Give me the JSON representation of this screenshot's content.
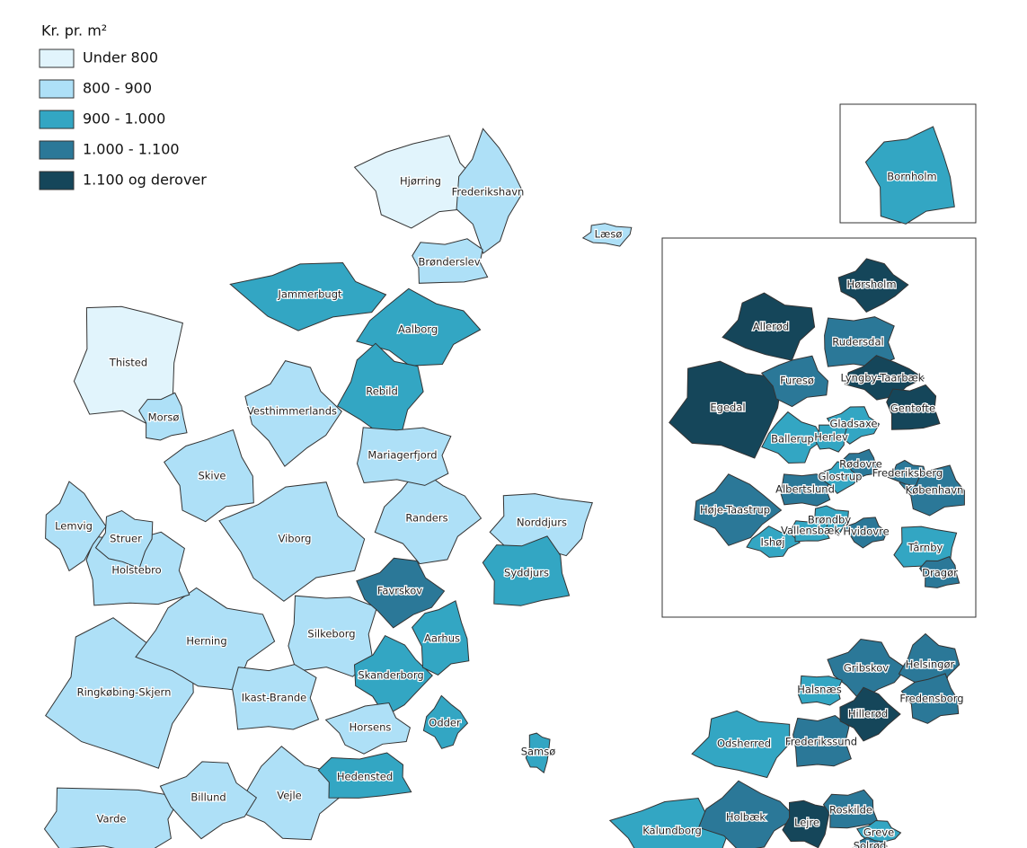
{
  "legend": {
    "title": "Kr. pr. m²",
    "items": [
      {
        "label": "Under 800",
        "color": "#e1f4fc"
      },
      {
        "label": "800 - 900",
        "color": "#aee0f7"
      },
      {
        "label": "900 - 1.000",
        "color": "#33a6c3"
      },
      {
        "label": "1.000 - 1.100",
        "color": "#2b7898"
      },
      {
        "label": "1.100 og derover",
        "color": "#15465a"
      }
    ]
  },
  "municipalities": [
    {
      "name": "Hjørring",
      "class": "Under 800"
    },
    {
      "name": "Frederikshavn",
      "class": "800 - 900"
    },
    {
      "name": "Læsø",
      "class": "800 - 900"
    },
    {
      "name": "Brønderslev",
      "class": "800 - 900"
    },
    {
      "name": "Jammerbugt",
      "class": "900 - 1.000"
    },
    {
      "name": "Aalborg",
      "class": "900 - 1.000"
    },
    {
      "name": "Thisted",
      "class": "Under 800"
    },
    {
      "name": "Morsø",
      "class": "800 - 900"
    },
    {
      "name": "Vesthimmerlands",
      "class": "800 - 900"
    },
    {
      "name": "Rebild",
      "class": "900 - 1.000"
    },
    {
      "name": "Mariagerfjord",
      "class": "800 - 900"
    },
    {
      "name": "Skive",
      "class": "800 - 900"
    },
    {
      "name": "Lemvig",
      "class": "800 - 900"
    },
    {
      "name": "Struer",
      "class": "800 - 900"
    },
    {
      "name": "Holstebro",
      "class": "800 - 900"
    },
    {
      "name": "Viborg",
      "class": "800 - 900"
    },
    {
      "name": "Randers",
      "class": "800 - 900"
    },
    {
      "name": "Norddjurs",
      "class": "800 - 900"
    },
    {
      "name": "Syddjurs",
      "class": "900 - 1.000"
    },
    {
      "name": "Favrskov",
      "class": "1.000 - 1.100"
    },
    {
      "name": "Herning",
      "class": "800 - 900"
    },
    {
      "name": "Silkeborg",
      "class": "800 - 900"
    },
    {
      "name": "Aarhus",
      "class": "900 - 1.000"
    },
    {
      "name": "Skanderborg",
      "class": "900 - 1.000"
    },
    {
      "name": "Ringkøbing-Skjern",
      "class": "800 - 900"
    },
    {
      "name": "Ikast-Brande",
      "class": "800 - 900"
    },
    {
      "name": "Horsens",
      "class": "800 - 900"
    },
    {
      "name": "Odder",
      "class": "900 - 1.000"
    },
    {
      "name": "Samsø",
      "class": "900 - 1.000"
    },
    {
      "name": "Hedensted",
      "class": "900 - 1.000"
    },
    {
      "name": "Billund",
      "class": "800 - 900"
    },
    {
      "name": "Vejle",
      "class": "800 - 900"
    },
    {
      "name": "Varde",
      "class": "800 - 900"
    },
    {
      "name": "Bornholm",
      "class": "900 - 1.000"
    },
    {
      "name": "Hørsholm",
      "class": "1.100 og derover"
    },
    {
      "name": "Allerød",
      "class": "1.100 og derover"
    },
    {
      "name": "Rudersdal",
      "class": "1.000 - 1.100"
    },
    {
      "name": "Furesø",
      "class": "1.000 - 1.100"
    },
    {
      "name": "Lyngby-Taarbæk",
      "class": "1.100 og derover"
    },
    {
      "name": "Egedal",
      "class": "1.100 og derover"
    },
    {
      "name": "Gentofte",
      "class": "1.100 og derover"
    },
    {
      "name": "Gladsaxe",
      "class": "900 - 1.000"
    },
    {
      "name": "Ballerup",
      "class": "900 - 1.000"
    },
    {
      "name": "Herlev",
      "class": "900 - 1.000"
    },
    {
      "name": "Rødovre",
      "class": "1.000 - 1.100"
    },
    {
      "name": "Glostrup",
      "class": "900 - 1.000"
    },
    {
      "name": "Frederiksberg",
      "class": "1.000 - 1.100"
    },
    {
      "name": "Albertslund",
      "class": "1.000 - 1.100"
    },
    {
      "name": "København",
      "class": "1.000 - 1.100"
    },
    {
      "name": "Høje-Taastrup",
      "class": "1.000 - 1.100"
    },
    {
      "name": "Brøndby",
      "class": "900 - 1.000"
    },
    {
      "name": "Vallensbæk",
      "class": "900 - 1.000"
    },
    {
      "name": "Hvidovre",
      "class": "1.000 - 1.100"
    },
    {
      "name": "Ishøj",
      "class": "900 - 1.000"
    },
    {
      "name": "Tårnby",
      "class": "900 - 1.000"
    },
    {
      "name": "Dragør",
      "class": "1.000 - 1.100"
    },
    {
      "name": "Gribskov",
      "class": "1.000 - 1.100"
    },
    {
      "name": "Helsingør",
      "class": "1.000 - 1.100"
    },
    {
      "name": "Halsnæs",
      "class": "900 - 1.000"
    },
    {
      "name": "Fredensborg",
      "class": "1.000 - 1.100"
    },
    {
      "name": "Hillerød",
      "class": "1.100 og derover"
    },
    {
      "name": "Odsherred",
      "class": "900 - 1.000"
    },
    {
      "name": "Frederikssund",
      "class": "1.000 - 1.100"
    },
    {
      "name": "Kalundborg",
      "class": "900 - 1.000"
    },
    {
      "name": "Holbæk",
      "class": "1.000 - 1.100"
    },
    {
      "name": "Lejre",
      "class": "1.100 og derover"
    },
    {
      "name": "Roskilde",
      "class": "1.000 - 1.100"
    },
    {
      "name": "Greve",
      "class": "900 - 1.000"
    },
    {
      "name": "Solrød",
      "class": "1.000 - 1.100"
    }
  ]
}
